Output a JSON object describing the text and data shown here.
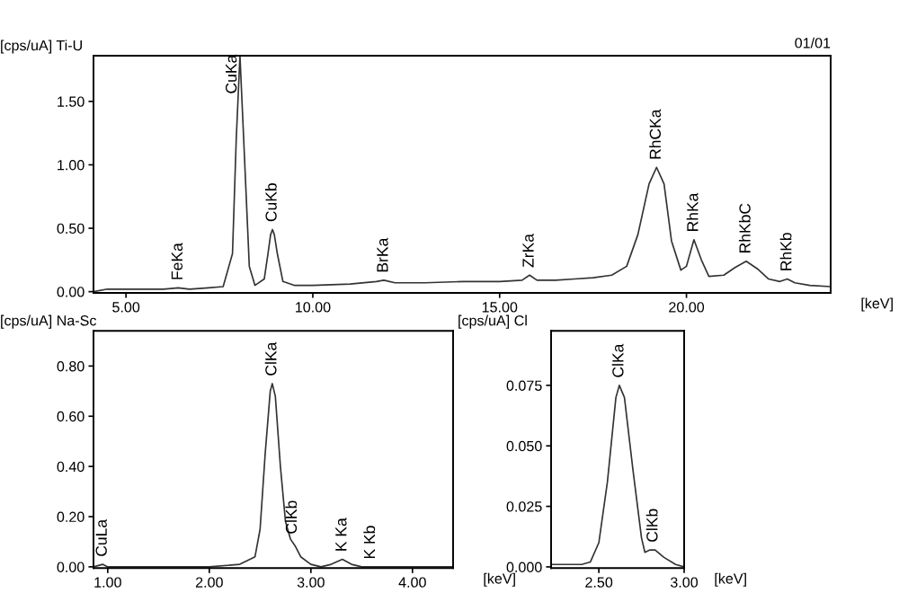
{
  "chart_data": [
    {
      "type": "line",
      "ylabel": "[cps/uA] Ti-U",
      "xlabel": "[keV]",
      "annotations": [
        "01/01",
        {
          "text": "FeKa",
          "x": 6.4,
          "y": 0.03
        },
        {
          "text": "CuKa",
          "x": 7.85,
          "y": 1.5
        },
        {
          "text": "CuKb",
          "x": 8.92,
          "y": 0.49
        },
        {
          "text": "BrKa",
          "x": 11.9,
          "y": 0.09
        },
        {
          "text": "ZrKa",
          "x": 15.8,
          "y": 0.13
        },
        {
          "text": "RhCKa",
          "x": 19.2,
          "y": 0.98
        },
        {
          "text": "RhKa",
          "x": 20.2,
          "y": 0.41
        },
        {
          "text": "RhKbC",
          "x": 21.6,
          "y": 0.24
        },
        {
          "text": "RhKb",
          "x": 22.7,
          "y": 0.1
        }
      ],
      "xlim": [
        4.13,
        23.86
      ],
      "ylim": [
        -0.01,
        1.86
      ],
      "xticks": [
        {
          "value": 5,
          "label": "5.00"
        },
        {
          "value": 10,
          "label": "10.00"
        },
        {
          "value": 15,
          "label": "15.00"
        },
        {
          "value": 20,
          "label": "20.00"
        }
      ],
      "yticks": [
        {
          "value": 0,
          "label": "0.00"
        },
        {
          "value": 0.5,
          "label": "0.50"
        },
        {
          "value": 1.0,
          "label": "1.00"
        },
        {
          "value": 1.5,
          "label": "1.50"
        }
      ],
      "grid": false,
      "marker": "none",
      "series": [
        {
          "color": "#333333",
          "x": [
            4.13,
            4.5,
            5.0,
            5.5,
            6.0,
            6.4,
            6.7,
            7.2,
            7.6,
            7.85,
            7.95,
            8.05,
            8.15,
            8.3,
            8.45,
            8.7,
            8.8,
            8.87,
            8.92,
            8.97,
            9.05,
            9.2,
            9.5,
            10.0,
            11.0,
            11.7,
            11.9,
            12.2,
            13.0,
            14.0,
            15.0,
            15.6,
            15.8,
            16.0,
            16.5,
            17.0,
            17.5,
            18.0,
            18.4,
            18.7,
            19.0,
            19.2,
            19.4,
            19.6,
            19.85,
            20.0,
            20.2,
            20.4,
            20.6,
            21.0,
            21.3,
            21.6,
            21.9,
            22.2,
            22.5,
            22.7,
            22.9,
            23.3,
            23.86
          ],
          "values": [
            0.0,
            0.02,
            0.02,
            0.02,
            0.02,
            0.03,
            0.02,
            0.03,
            0.04,
            0.3,
            1.2,
            1.86,
            1.2,
            0.2,
            0.05,
            0.1,
            0.3,
            0.45,
            0.49,
            0.45,
            0.3,
            0.08,
            0.05,
            0.05,
            0.06,
            0.08,
            0.09,
            0.07,
            0.07,
            0.08,
            0.08,
            0.09,
            0.13,
            0.09,
            0.09,
            0.1,
            0.11,
            0.13,
            0.2,
            0.45,
            0.85,
            0.98,
            0.85,
            0.4,
            0.17,
            0.2,
            0.41,
            0.25,
            0.12,
            0.13,
            0.19,
            0.24,
            0.18,
            0.1,
            0.08,
            0.1,
            0.07,
            0.05,
            0.04
          ]
        }
      ]
    },
    {
      "type": "line",
      "ylabel": "[cps/uA] Na-Sc",
      "xlabel": "[keV]",
      "annotations": [
        {
          "text": "CuLa",
          "x": 0.95,
          "y": 0.01
        },
        {
          "text": "ClKa",
          "x": 2.62,
          "y": 0.73
        },
        {
          "text": "ClKb",
          "x": 2.82,
          "y": 0.1
        },
        {
          "text": "K Ka",
          "x": 3.31,
          "y": 0.03
        },
        {
          "text": "K Kb",
          "x": 3.59,
          "y": 0.0
        }
      ],
      "xlim": [
        0.86,
        4.4
      ],
      "ylim": [
        -0.005,
        0.94
      ],
      "xticks": [
        {
          "value": 1,
          "label": "1.00"
        },
        {
          "value": 2,
          "label": "2.00"
        },
        {
          "value": 3,
          "label": "3.00"
        },
        {
          "value": 4,
          "label": "4.00"
        }
      ],
      "yticks": [
        {
          "value": 0,
          "label": "0.00"
        },
        {
          "value": 0.2,
          "label": "0.20"
        },
        {
          "value": 0.4,
          "label": "0.40"
        },
        {
          "value": 0.6,
          "label": "0.60"
        },
        {
          "value": 0.8,
          "label": "0.80"
        }
      ],
      "grid": false,
      "marker": "none",
      "series": [
        {
          "color": "#333333",
          "x": [
            0.86,
            0.95,
            1.0,
            1.5,
            2.0,
            2.3,
            2.45,
            2.5,
            2.55,
            2.6,
            2.62,
            2.65,
            2.7,
            2.75,
            2.8,
            2.85,
            2.9,
            3.0,
            3.1,
            3.2,
            3.31,
            3.4,
            3.5,
            3.6,
            4.0,
            4.4
          ],
          "values": [
            0.0,
            0.01,
            0.0,
            0.0,
            0.0,
            0.01,
            0.04,
            0.15,
            0.45,
            0.7,
            0.73,
            0.68,
            0.4,
            0.18,
            0.11,
            0.08,
            0.04,
            0.01,
            0.0,
            0.01,
            0.03,
            0.01,
            0.0,
            0.0,
            0.0,
            0.0
          ]
        }
      ]
    },
    {
      "type": "line",
      "ylabel": "[cps/uA] Cl",
      "xlabel": "[keV]",
      "annotations": [
        {
          "text": "ClKa",
          "x": 2.62,
          "y": 0.075
        },
        {
          "text": "ClKb",
          "x": 2.82,
          "y": 0.007
        }
      ],
      "xlim": [
        2.22,
        3.0
      ],
      "ylim": [
        -0.0005,
        0.0975
      ],
      "xticks": [
        {
          "value": 2.5,
          "label": "2.50"
        },
        {
          "value": 3.0,
          "label": "3.00"
        }
      ],
      "yticks": [
        {
          "value": 0,
          "label": "0.000"
        },
        {
          "value": 0.025,
          "label": "0.025"
        },
        {
          "value": 0.05,
          "label": "0.050"
        },
        {
          "value": 0.075,
          "label": "0.075"
        }
      ],
      "grid": false,
      "marker": "none",
      "series": [
        {
          "color": "#333333",
          "x": [
            2.22,
            2.4,
            2.45,
            2.5,
            2.55,
            2.6,
            2.62,
            2.65,
            2.7,
            2.75,
            2.77,
            2.8,
            2.83,
            2.88,
            2.95,
            3.0
          ],
          "values": [
            0.001,
            0.001,
            0.002,
            0.01,
            0.035,
            0.07,
            0.075,
            0.07,
            0.04,
            0.012,
            0.006,
            0.007,
            0.007,
            0.004,
            0.001,
            0.0
          ]
        }
      ]
    }
  ]
}
